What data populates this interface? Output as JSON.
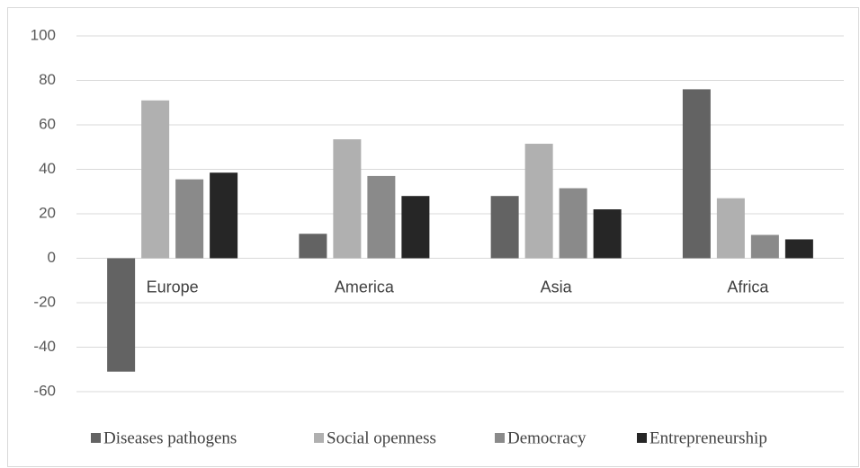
{
  "chart_data": {
    "type": "bar",
    "categories": [
      "Europe",
      "America",
      "Asia",
      "Africa"
    ],
    "series": [
      {
        "name": "Diseases pathogens",
        "color": "#636363",
        "values": [
          -51,
          11,
          28,
          76
        ]
      },
      {
        "name": "Social openness",
        "color": "#b0b0b0",
        "values": [
          71,
          53.5,
          51.5,
          27
        ]
      },
      {
        "name": "Democracy",
        "color": "#8a8a8a",
        "values": [
          35.5,
          37,
          31.5,
          10.5
        ]
      },
      {
        "name": "Entrepreneurship",
        "color": "#262626",
        "values": [
          38.5,
          28,
          22,
          8.5
        ]
      }
    ],
    "ylim": [
      -60,
      100
    ],
    "yticks": [
      -60,
      -40,
      -20,
      0,
      20,
      40,
      60,
      80,
      100
    ],
    "grid": true,
    "legend": "bottom"
  }
}
